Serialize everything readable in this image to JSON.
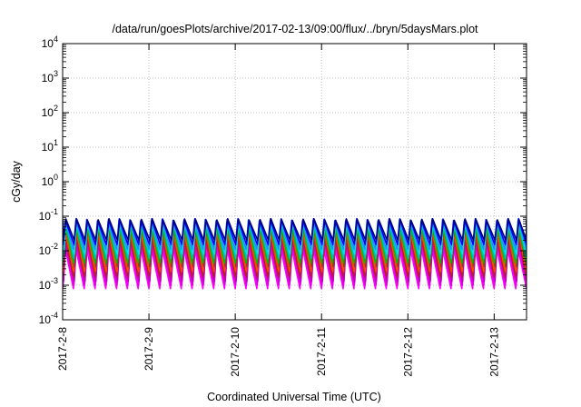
{
  "chart_data": {
    "type": "line",
    "title": "/data/run/goesPlots/archive/2017-02-13/09:00/flux/../bryn/5daysMars.plot",
    "xlabel": "Coordinated Universal Time (UTC)",
    "ylabel": "cGy/day",
    "y_scale": "log",
    "ylim": [
      0.0001,
      10000
    ],
    "xlim": [
      "2017-02-08T00:00",
      "2017-02-13T09:00"
    ],
    "grid": true,
    "x_ticks": [
      "2017-2-8",
      "2017-2-9",
      "2017-2-10",
      "2017-2-11",
      "2017-2-12",
      "2017-2-13"
    ],
    "y_ticks": [
      {
        "base": "10",
        "exp": "-4",
        "value": 0.0001
      },
      {
        "base": "10",
        "exp": "-3",
        "value": 0.001
      },
      {
        "base": "10",
        "exp": "-2",
        "value": 0.01
      },
      {
        "base": "10",
        "exp": "-1",
        "value": 0.1
      },
      {
        "base": "10",
        "exp": "0",
        "value": 1
      },
      {
        "base": "10",
        "exp": "1",
        "value": 10
      },
      {
        "base": "10",
        "exp": "2",
        "value": 100
      },
      {
        "base": "10",
        "exp": "3",
        "value": 1000
      },
      {
        "base": "10",
        "exp": "4",
        "value": 10000
      }
    ],
    "oscillation_period_hours": 3,
    "series": [
      {
        "color": "#ff00ff",
        "peak": 0.012,
        "trough": 0.0008
      },
      {
        "color": "#e000e0",
        "peak": 0.016,
        "trough": 0.001
      },
      {
        "color": "#c000c0",
        "peak": 0.02,
        "trough": 0.0013
      },
      {
        "color": "#b22222",
        "peak": 0.028,
        "trough": 0.0018
      },
      {
        "color": "#ff4500",
        "peak": 0.035,
        "trough": 0.0025
      },
      {
        "color": "#8b4513",
        "peak": 0.045,
        "trough": 0.0035
      },
      {
        "color": "#00c000",
        "peak": 0.055,
        "trough": 0.0045
      },
      {
        "color": "#00bfbf",
        "peak": 0.065,
        "trough": 0.006
      },
      {
        "color": "#00e5ee",
        "peak": 0.07,
        "trough": 0.008
      },
      {
        "color": "#1e90ff",
        "peak": 0.075,
        "trough": 0.011
      },
      {
        "color": "#0000ff",
        "peak": 0.08,
        "trough": 0.015
      },
      {
        "color": "#000080",
        "peak": 0.08,
        "trough": 0.02
      }
    ]
  }
}
